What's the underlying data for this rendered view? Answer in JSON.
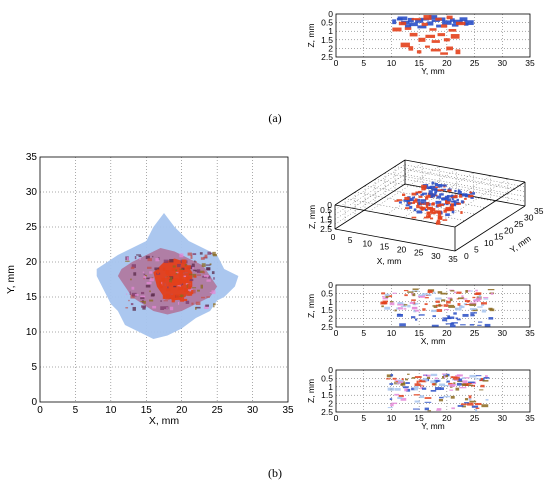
{
  "panel_labels": {
    "a": "(a)",
    "b": "(b)"
  },
  "colors": {
    "blue_dark": "#2a4fc6",
    "blue_light": "#a7c4ee",
    "red": "#e3401b",
    "olive": "#8b6a1e",
    "pink": "#e58ad8"
  },
  "chart_data": [
    {
      "id": "a-yz",
      "type": "scatter",
      "xlabel": "Y, mm",
      "ylabel": "Z, mm",
      "xlim": [
        0,
        35
      ],
      "ylim": [
        0,
        2.5
      ],
      "x_ticks": [
        "0",
        "5",
        "10",
        "15",
        "20",
        "25",
        "30",
        "35"
      ],
      "y_ticks": [
        "0",
        "0.5",
        "1",
        "1.5",
        "2",
        "2.5"
      ],
      "y_reversed": true,
      "grid": true,
      "series": [
        {
          "color": "#2a4fc6",
          "points": [
            [
              10.5,
              0.45
            ],
            [
              11.5,
              0.3
            ],
            [
              12.5,
              0.5
            ],
            [
              13.5,
              0.35
            ],
            [
              14,
              0.6
            ],
            [
              15,
              0.4
            ],
            [
              16,
              0.3
            ],
            [
              17,
              0.55
            ],
            [
              18,
              0.4
            ],
            [
              19,
              0.3
            ],
            [
              20,
              0.5
            ],
            [
              21,
              0.35
            ],
            [
              22,
              0.45
            ],
            [
              23,
              0.3
            ],
            [
              24,
              0.5
            ],
            [
              13,
              0.7
            ],
            [
              15.5,
              0.75
            ],
            [
              18.5,
              0.7
            ],
            [
              21.5,
              0.65
            ],
            [
              12,
              0.25
            ],
            [
              17.5,
              0.2
            ],
            [
              23.5,
              0.6
            ]
          ]
        },
        {
          "color": "#e3401b",
          "points": [
            [
              12,
              0.55
            ],
            [
              13,
              0.85
            ],
            [
              14.5,
              0.3
            ],
            [
              16,
              0.6
            ],
            [
              16.5,
              0.2
            ],
            [
              17.5,
              0.9
            ],
            [
              18.5,
              0.3
            ],
            [
              19.5,
              0.7
            ],
            [
              20.5,
              0.2
            ],
            [
              21,
              0.95
            ],
            [
              22.5,
              0.55
            ],
            [
              11,
              0.9
            ],
            [
              14,
              1.2
            ],
            [
              15.5,
              1.5
            ],
            [
              17,
              1.3
            ],
            [
              18,
              1.6
            ],
            [
              19,
              1.2
            ],
            [
              20,
              1.5
            ],
            [
              21.5,
              1.3
            ],
            [
              13.5,
              2.0
            ],
            [
              15,
              2.2
            ],
            [
              16.5,
              1.9
            ],
            [
              18,
              2.1
            ],
            [
              19.5,
              2.3
            ],
            [
              20.5,
              2.0
            ],
            [
              22,
              2.2
            ],
            [
              12.5,
              1.8
            ]
          ]
        }
      ]
    },
    {
      "id": "b-xy",
      "type": "scatter",
      "xlabel": "X, mm",
      "ylabel": "Y, mm",
      "xlim": [
        0,
        35
      ],
      "ylim": [
        0,
        35
      ],
      "x_ticks": [
        "0",
        "5",
        "10",
        "15",
        "20",
        "25",
        "30",
        "35"
      ],
      "y_ticks": [
        "0",
        "5",
        "10",
        "15",
        "20",
        "25",
        "30",
        "35"
      ],
      "grid": true,
      "regions": [
        {
          "name_hint": "outer",
          "color": "#a7c4ee",
          "polygon": [
            [
              8,
              18
            ],
            [
              9,
              16
            ],
            [
              10,
              14
            ],
            [
              11,
              13
            ],
            [
              12,
              11
            ],
            [
              14,
              10
            ],
            [
              16,
              9
            ],
            [
              18,
              9.5
            ],
            [
              20,
              10.5
            ],
            [
              22,
              12
            ],
            [
              24,
              13
            ],
            [
              25,
              14.5
            ],
            [
              26,
              15
            ],
            [
              27.5,
              16.5
            ],
            [
              28,
              18
            ],
            [
              26,
              19
            ],
            [
              25,
              21
            ],
            [
              23,
              22
            ],
            [
              21,
              23
            ],
            [
              19,
              25
            ],
            [
              17.5,
              27
            ],
            [
              16,
              25
            ],
            [
              15,
              23
            ],
            [
              13,
              22
            ],
            [
              11,
              21
            ],
            [
              9.5,
              20
            ],
            [
              8,
              19
            ]
          ]
        },
        {
          "name_hint": "middle",
          "color": "#b07aa0",
          "polygon": [
            [
              11,
              18
            ],
            [
              12,
              16.5
            ],
            [
              13,
              15
            ],
            [
              14.5,
              14
            ],
            [
              16,
              13
            ],
            [
              18,
              12.5
            ],
            [
              20,
              13
            ],
            [
              22,
              14
            ],
            [
              24,
              15
            ],
            [
              25,
              16.5
            ],
            [
              24,
              18
            ],
            [
              23,
              19.5
            ],
            [
              21,
              20.5
            ],
            [
              19,
              21.5
            ],
            [
              17,
              22
            ],
            [
              15,
              21
            ],
            [
              13,
              20
            ],
            [
              11.5,
              19
            ]
          ]
        },
        {
          "name_hint": "core",
          "color": "#e3401b",
          "polygon": [
            [
              16,
              18.5
            ],
            [
              16.5,
              16.5
            ],
            [
              17.5,
              15
            ],
            [
              19,
              14.5
            ],
            [
              20.5,
              15
            ],
            [
              21.5,
              16.5
            ],
            [
              21.5,
              18.5
            ],
            [
              20.5,
              20
            ],
            [
              19,
              20.5
            ],
            [
              17.5,
              20
            ]
          ]
        }
      ]
    },
    {
      "id": "b-3d",
      "type": "scatter",
      "xlabel": "X, mm",
      "ylabel": "Y, mm",
      "zlabel": "Z, mm",
      "xlim": [
        0,
        35
      ],
      "ylim": [
        0,
        35
      ],
      "zlim": [
        0,
        2.5
      ],
      "x_ticks": [
        "0",
        "5",
        "10",
        "15",
        "20",
        "25",
        "30",
        "35"
      ],
      "y_ticks": [
        "0",
        "5",
        "10",
        "15",
        "20",
        "25",
        "30",
        "35"
      ],
      "z_ticks": [
        "0",
        "0.5",
        "1",
        "1.5",
        "2",
        "2.5"
      ],
      "grid": true
    },
    {
      "id": "b-xz",
      "type": "scatter",
      "xlabel": "X, mm",
      "ylabel": "Z, mm",
      "xlim": [
        0,
        35
      ],
      "ylim": [
        0,
        2.5
      ],
      "x_ticks": [
        "0",
        "5",
        "10",
        "15",
        "20",
        "25",
        "30",
        "35"
      ],
      "y_ticks": [
        "0",
        "0.5",
        "1",
        "1.5",
        "2",
        "2.5"
      ],
      "y_reversed": true,
      "grid": true
    },
    {
      "id": "b-yz",
      "type": "scatter",
      "xlabel": "Y, mm",
      "ylabel": "Z, mm",
      "xlim": [
        0,
        35
      ],
      "ylim": [
        0,
        2.5
      ],
      "x_ticks": [
        "0",
        "5",
        "10",
        "15",
        "20",
        "25",
        "30",
        "35"
      ],
      "y_ticks": [
        "0",
        "0.5",
        "1",
        "1.5",
        "2",
        "2.5"
      ],
      "y_reversed": true,
      "grid": true
    }
  ]
}
